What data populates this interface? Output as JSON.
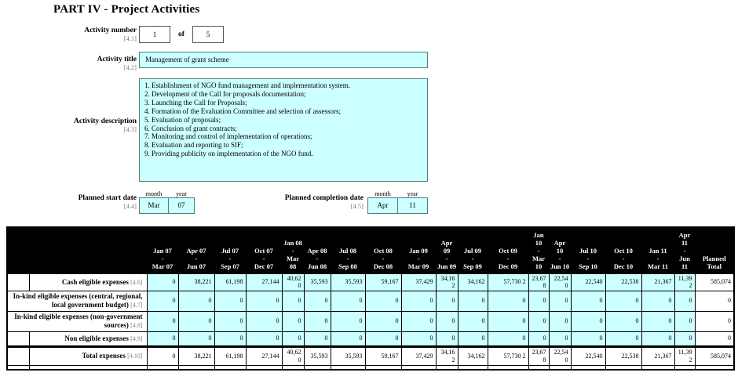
{
  "title": "PART IV - Project Activities",
  "colors": {
    "field_fill": "#ccffff",
    "header_bg": "#000000",
    "header_text": "#ffffff"
  },
  "fields": {
    "activity_number": {
      "label": "Activity number",
      "ref": "[4.1]",
      "value": "1",
      "of_label": "of",
      "total": "5"
    },
    "activity_title": {
      "label": "Activity title",
      "ref": "[4.2]",
      "value": "Management of grant scheme"
    },
    "activity_description": {
      "label": "Activity description",
      "ref": "[4.3]",
      "lines": [
        "1. Establishment of NGO fund management and implementation system.",
        "2. Development of the Call for proposals documentation;",
        "3. Launching the Call for Proposals;",
        "4. Formation of the Evaluation Committee and selection of assessors;",
        "5. Evaluation of proposals;",
        "6. Conclusion of grant contracts;",
        "7. Monitoring and control of implementation of operations;",
        "8. Evaluation and reporting to SIF;",
        "9. Providing publicity on implementation of the NGO fund."
      ]
    },
    "planned_start_date": {
      "label": "Planned start date",
      "ref": "[4.4]",
      "month_label": "month",
      "year_label": "year",
      "month": "Mar",
      "year": "07"
    },
    "planned_completion_date": {
      "label": "Planned completion date",
      "ref": "[4.5]",
      "month_label": "month",
      "year_label": "year",
      "month": "Apr",
      "year": "11"
    }
  },
  "table": {
    "total_header": "Planned Total",
    "quarters": [
      {
        "from": "Jan 07",
        "to": "Mar 07"
      },
      {
        "from": "Apr 07",
        "to": "Jun 07"
      },
      {
        "from": "Jul 07",
        "to": "Sep 07"
      },
      {
        "from": "Oct 07",
        "to": "Dec 07"
      },
      {
        "from": "Jan 08",
        "to": "Mar 08"
      },
      {
        "from": "Apr 08",
        "to": "Jun 08"
      },
      {
        "from": "Jul 08",
        "to": "Sep 08"
      },
      {
        "from": "Oct 08",
        "to": "Dec 08"
      },
      {
        "from": "Jan 09",
        "to": "Mar 09"
      },
      {
        "from": "Apr 09",
        "to": "Jun 09"
      },
      {
        "from": "Jul 09",
        "to": "Sep 09"
      },
      {
        "from": "Oct 09",
        "to": "Dec 09"
      },
      {
        "from": "Jan 10",
        "to": "Mar 10"
      },
      {
        "from": "Apr 10",
        "to": "Jun 10"
      },
      {
        "from": "Jul 10",
        "to": "Sep 10"
      },
      {
        "from": "Oct 10",
        "to": "Dec 10"
      },
      {
        "from": "Jan 11",
        "to": "Mar 11"
      },
      {
        "from": "Apr 11",
        "to": "Jun 11"
      }
    ],
    "rows": [
      {
        "label": "Cash eligible expenses",
        "ref": "[4.6]",
        "label_spans_left_column": false,
        "is_total": false,
        "values": [
          "0",
          "38,221",
          "61,198",
          "27,144",
          "40,620",
          "35,593",
          "35,593",
          "59,167",
          "37,429",
          "34,162",
          "34,162",
          "57,730 2",
          "23,678",
          "22,540",
          "22,540",
          "22,538",
          "21,367",
          "11,392"
        ],
        "total": "585,074"
      },
      {
        "label": "In-kind eligible expenses (central, regional, local government budget)",
        "ref": "[4.7]",
        "label_spans_left_column": true,
        "is_total": false,
        "values": [
          "0",
          "0",
          "0",
          "0",
          "0",
          "0",
          "0",
          "0",
          "0",
          "0",
          "0",
          "0",
          "0",
          "0",
          "0",
          "0",
          "0",
          "0"
        ],
        "total": "0"
      },
      {
        "label": "In-kind eligible expenses (non-government sources)",
        "ref": "[4.8]",
        "label_spans_left_column": true,
        "is_total": false,
        "values": [
          "0",
          "0",
          "0",
          "0",
          "0",
          "0",
          "0",
          "0",
          "0",
          "0",
          "0",
          "0",
          "0",
          "0",
          "0",
          "0",
          "0",
          "0"
        ],
        "total": "0"
      },
      {
        "label": "Non eligible expenses",
        "ref": "[4.9]",
        "label_spans_left_column": false,
        "is_total": false,
        "values": [
          "0",
          "0",
          "0",
          "0",
          "0",
          "0",
          "0",
          "0",
          "0",
          "0",
          "0",
          "0",
          "0",
          "0",
          "0",
          "0",
          "0",
          "0"
        ],
        "total": "0"
      },
      {
        "label": "Total expenses",
        "ref": "[4.10]",
        "label_spans_left_column": false,
        "is_total": true,
        "values": [
          "0",
          "38,221",
          "61,198",
          "27,144",
          "40,620",
          "35,593",
          "35,593",
          "59,167",
          "37,429",
          "34,162",
          "34,162",
          "57,730 2",
          "23,678",
          "22,540",
          "22,540",
          "22,538",
          "21,367",
          "11,392"
        ],
        "total": "585,074"
      }
    ]
  }
}
